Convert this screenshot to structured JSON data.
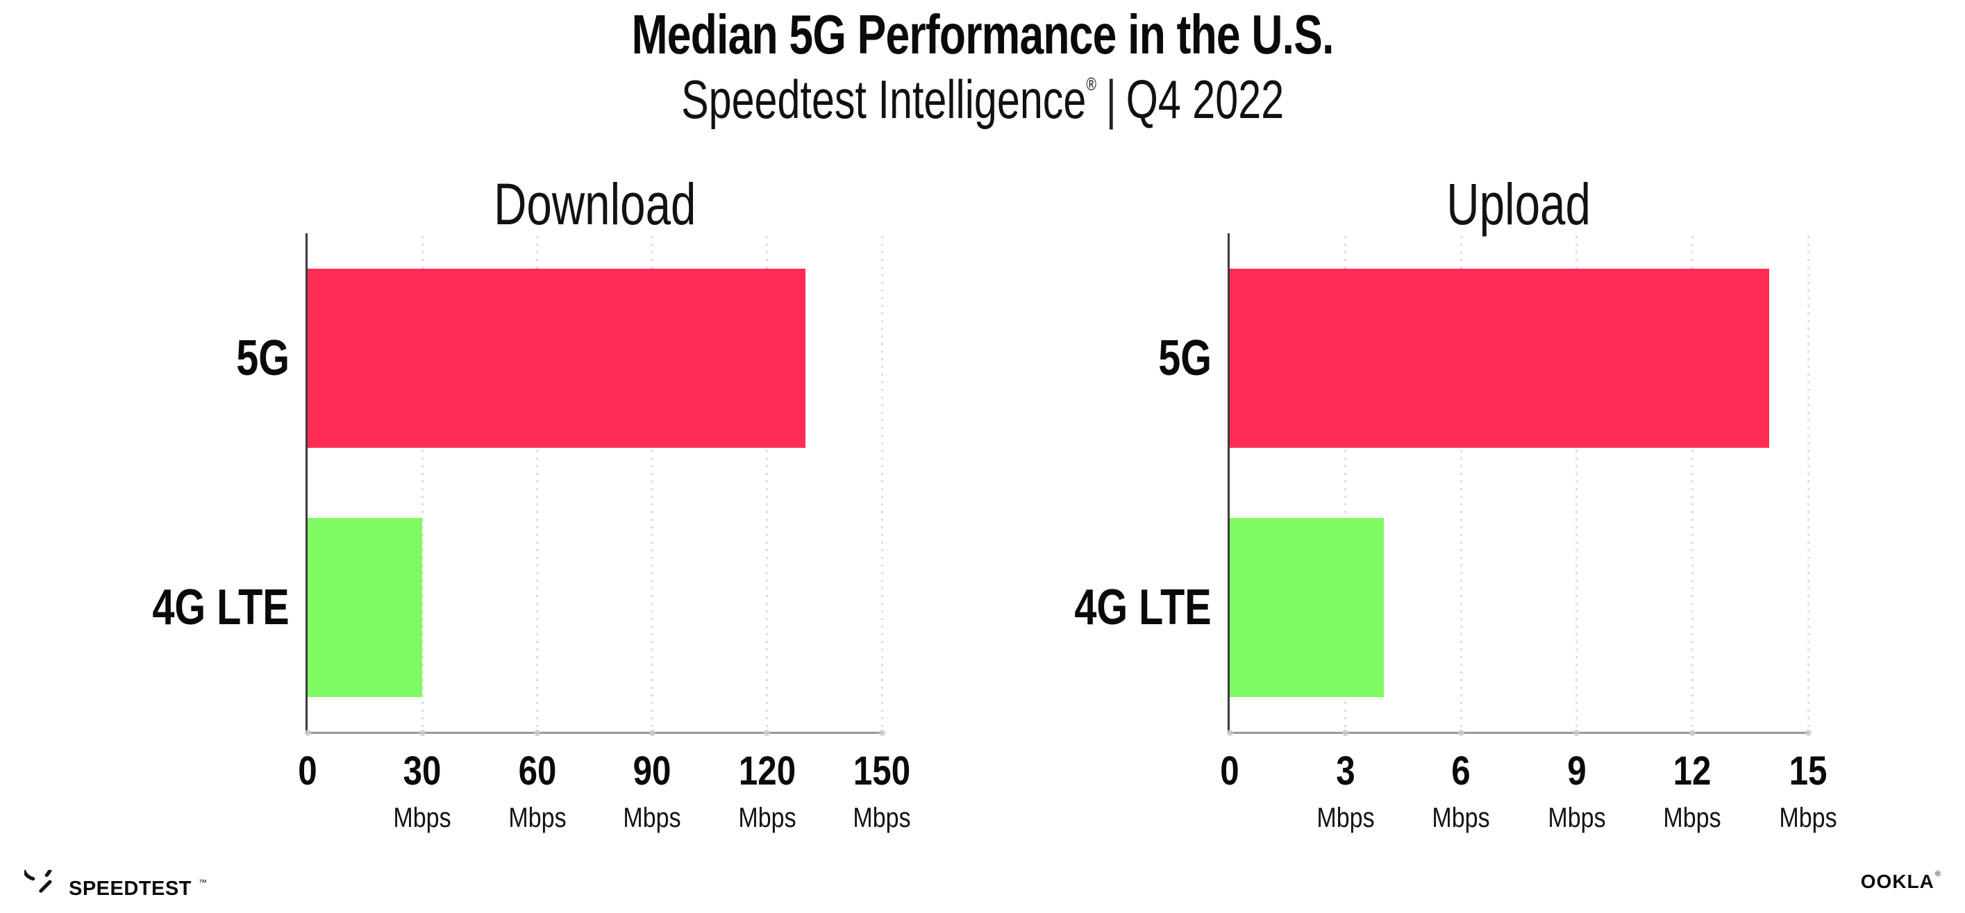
{
  "header": {
    "title": "Median 5G Performance in the U.S.",
    "subtitle": {
      "brand": "Speedtest Intelligence",
      "registered": "®",
      "separator": "|",
      "period": "Q4 2022"
    }
  },
  "chart_data": [
    {
      "type": "bar",
      "orientation": "horizontal",
      "title": "Download",
      "categories": [
        "5G",
        "4G LTE"
      ],
      "values": [
        130,
        30
      ],
      "unit": "Mbps",
      "xlim": [
        0,
        150
      ],
      "ticks": [
        0,
        30,
        60,
        90,
        120,
        150
      ],
      "grid": "dotted-vertical",
      "bar_colors": [
        "#ff2d55",
        "#80fa63"
      ]
    },
    {
      "type": "bar",
      "orientation": "horizontal",
      "title": "Upload",
      "categories": [
        "5G",
        "4G LTE"
      ],
      "values": [
        14,
        4
      ],
      "unit": "Mbps",
      "xlim": [
        0,
        15
      ],
      "ticks": [
        0,
        3,
        6,
        9,
        12,
        15
      ],
      "grid": "dotted-vertical",
      "bar_colors": [
        "#ff2d55",
        "#80fa63"
      ]
    }
  ],
  "footer": {
    "speedtest_wordmark": "SPEEDTEST",
    "speedtest_trademark": "™",
    "ookla_wordmark": "OOKLA",
    "ookla_registered": "®"
  },
  "colors": {
    "bar_5g": "#ff2d55",
    "bar_4g_lte": "#80fa63",
    "x_axis": "#98989f",
    "y_axis": "#3a3a40",
    "gridline_dots": "#d9d9e3",
    "text": "#0a0a0a"
  }
}
